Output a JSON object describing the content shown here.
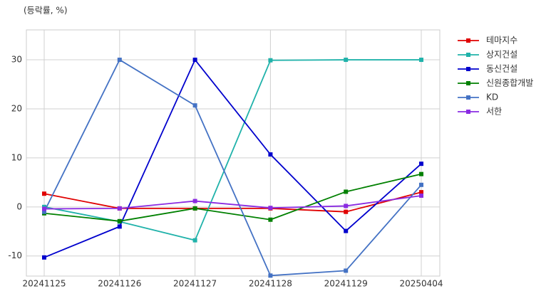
{
  "chart_data": {
    "type": "line",
    "y_label": "(등락률, %)",
    "categories": [
      "20241125",
      "20241126",
      "20241127",
      "20241128",
      "20241129",
      "20250404"
    ],
    "series": [
      {
        "name": "테마지수",
        "color": "#e00000",
        "values": [
          2.7,
          -0.3,
          -0.3,
          -0.3,
          -1.0,
          3.0
        ]
      },
      {
        "name": "상지건설",
        "color": "#20b2aa",
        "values": [
          0.0,
          -3.0,
          -6.8,
          29.9,
          30.0,
          30.0
        ]
      },
      {
        "name": "동신건설",
        "color": "#0000cd",
        "values": [
          -10.3,
          -4.0,
          30.0,
          10.7,
          -4.9,
          8.8
        ]
      },
      {
        "name": "신원종합개발",
        "color": "#008000",
        "values": [
          -1.3,
          -2.9,
          -0.3,
          -2.6,
          3.1,
          6.7
        ]
      },
      {
        "name": "KD",
        "color": "#4472c4",
        "values": [
          -1.0,
          30.0,
          20.7,
          -14.0,
          -13.0,
          4.5
        ]
      },
      {
        "name": "서한",
        "color": "#8a2be2",
        "values": [
          -0.4,
          -0.3,
          1.2,
          -0.2,
          0.2,
          2.3
        ]
      }
    ],
    "ylim": [
      -14.1,
      36.1
    ],
    "yticks": [
      -10,
      0,
      10,
      20,
      30
    ],
    "grid": true,
    "legend": "outside-right"
  }
}
